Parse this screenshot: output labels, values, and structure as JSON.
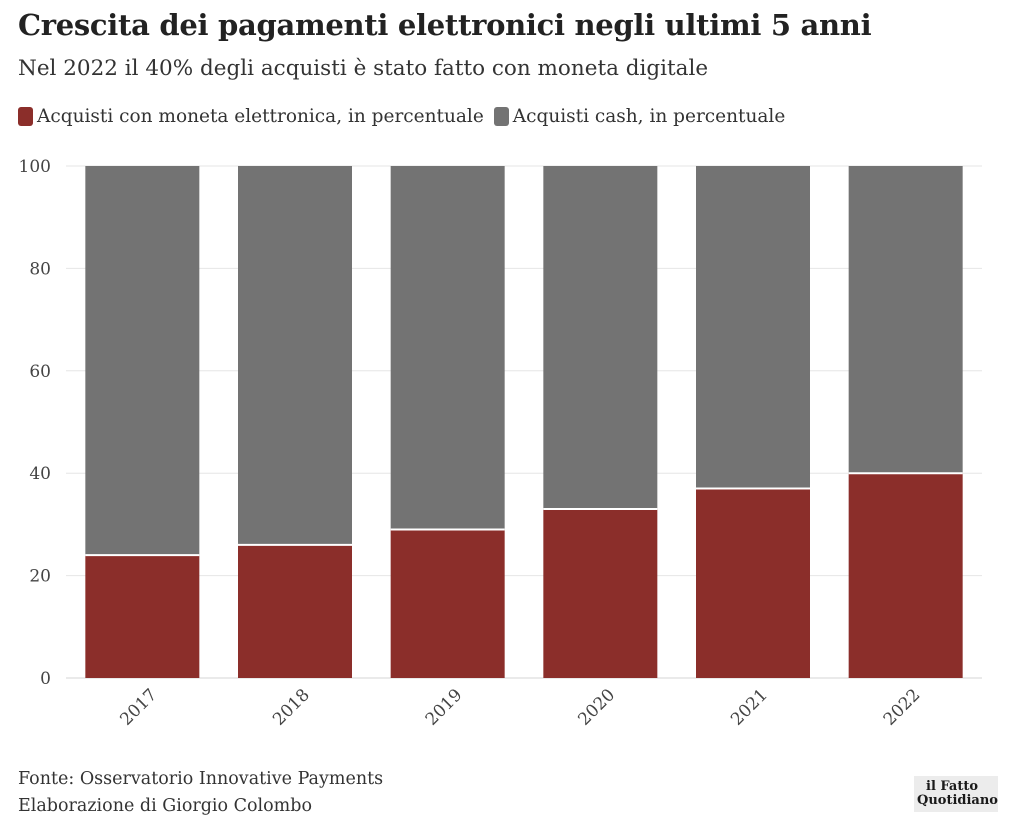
{
  "header": {
    "title": "Crescita dei pagamenti elettronici negli ultimi 5 anni",
    "subtitle": "Nel 2022 il 40% degli acquisti è stato fatto con moneta digitale"
  },
  "legend": {
    "items": [
      {
        "label": "Acquisti con moneta elettronica, in percentuale",
        "color": "#8b2e2a"
      },
      {
        "label": "Acquisti cash, in percentuale",
        "color": "#737373"
      }
    ]
  },
  "chart_data": {
    "type": "bar",
    "stacked": true,
    "categories": [
      "2017",
      "2018",
      "2019",
      "2020",
      "2021",
      "2022"
    ],
    "series": [
      {
        "name": "Acquisti con moneta elettronica, in percentuale",
        "color": "#8b2e2a",
        "values": [
          24,
          26,
          29,
          33,
          37,
          40
        ]
      },
      {
        "name": "Acquisti cash, in percentuale",
        "color": "#737373",
        "values": [
          76,
          74,
          71,
          67,
          63,
          60
        ]
      }
    ],
    "ylim": [
      0,
      100
    ],
    "yticks": [
      0,
      20,
      40,
      60,
      80,
      100
    ],
    "grid": true,
    "legend_position": "top-left"
  },
  "footer": {
    "source": "Fonte: Osservatorio Innovative Payments",
    "credit": "Elaborazione di Giorgio Colombo"
  },
  "logo": {
    "line1": "il Fatto",
    "line2": "Quotidiano"
  }
}
